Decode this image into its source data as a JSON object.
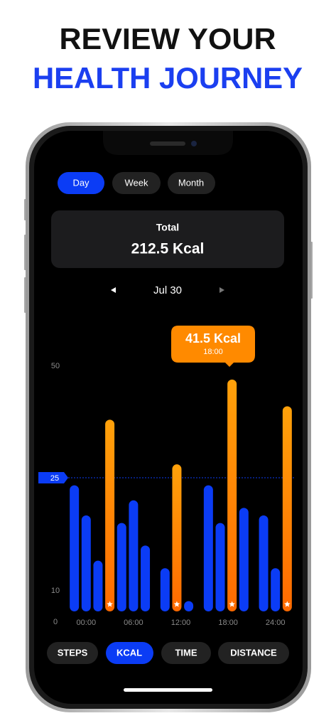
{
  "header": {
    "line1": "REVIEW YOUR",
    "line2": "HEALTH JOURNEY"
  },
  "period_tabs": [
    "Day",
    "Week",
    "Month"
  ],
  "summary": {
    "label": "Total",
    "value": "212.5 Kcal"
  },
  "date": "Jul 30",
  "chart_data": {
    "type": "bar",
    "x": [
      -1.5,
      0,
      1.5,
      3,
      4.5,
      6,
      7.5,
      10,
      11.5,
      13,
      15.5,
      17,
      18.5,
      20,
      22.5,
      24,
      25.5
    ],
    "values": [
      24,
      20,
      14,
      38,
      19,
      22,
      16,
      13,
      28,
      5,
      24,
      19,
      47,
      21,
      20,
      13,
      41
    ],
    "colors": [
      "#0b3cf5",
      "#0b3cf5",
      "#0b3cf5",
      "#ff8a00",
      "#0b3cf5",
      "#0b3cf5",
      "#0b3cf5",
      "#0b3cf5",
      "#ff8a00",
      "#0b3cf5",
      "#0b3cf5",
      "#0b3cf5",
      "#ff8a00",
      "#0b3cf5",
      "#0b3cf5",
      "#0b3cf5",
      "#ff8a00"
    ],
    "xlim": [
      -3,
      27
    ],
    "xticks": [
      {
        "value": 0,
        "label": "00:00"
      },
      {
        "value": 6,
        "label": "06:00"
      },
      {
        "value": 12,
        "label": "12:00"
      },
      {
        "value": 18,
        "label": "18:00"
      },
      {
        "value": 24,
        "label": "24:00"
      }
    ],
    "ylim": [
      0,
      50
    ],
    "yticks": [
      0,
      10,
      25,
      50
    ],
    "reference_line": 25,
    "annotation": {
      "value": "41.5 Kcal",
      "time": "18:00"
    }
  },
  "metric_tabs": [
    "STEPS",
    "KCAL",
    "TIME",
    "DISTANCE"
  ]
}
